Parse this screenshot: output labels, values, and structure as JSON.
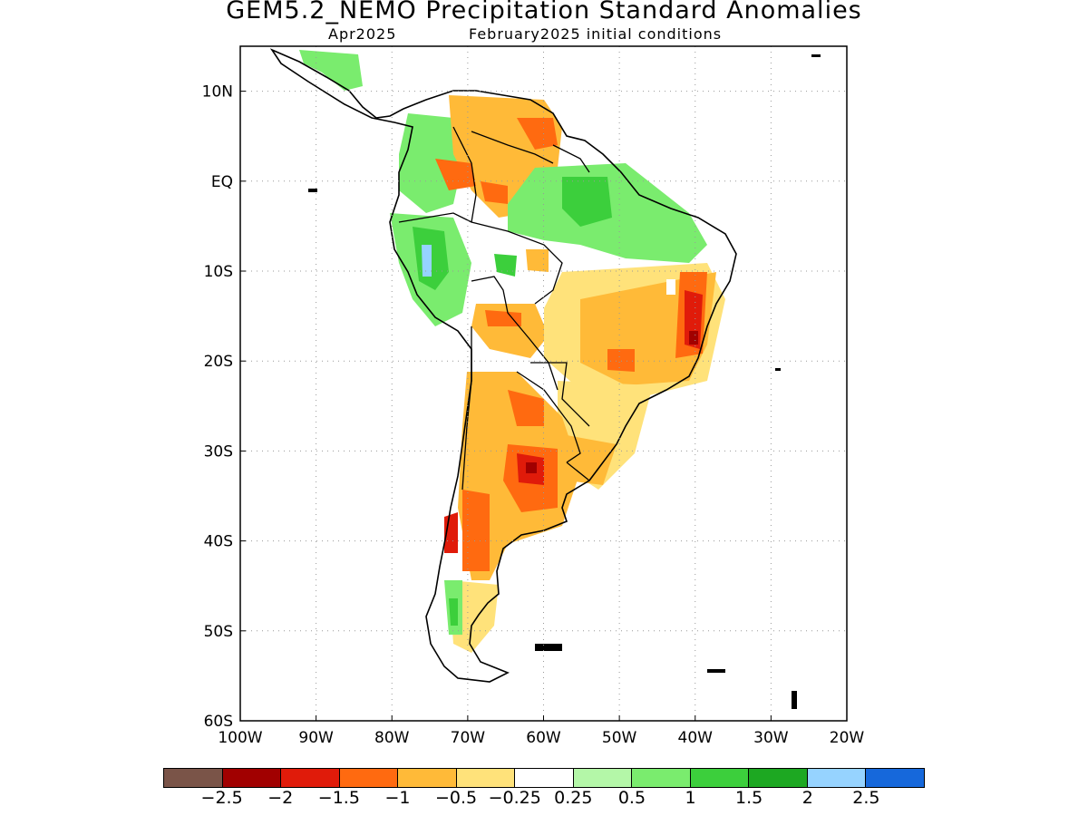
{
  "title": "GEM5.2_NEMO Precipitation Standard Anomalies",
  "subtitle_left": "Apr2025",
  "subtitle_right": "February2025 initial conditions",
  "axes": {
    "lon_range": [
      -100,
      -20
    ],
    "lat_range": [
      -60,
      15
    ],
    "x_tick_labels": [
      "100W",
      "90W",
      "80W",
      "70W",
      "60W",
      "50W",
      "40W",
      "30W",
      "20W"
    ],
    "y_tick_labels": [
      "10N",
      "EQ",
      "10S",
      "20S",
      "30S",
      "40S",
      "50S",
      "60S"
    ],
    "grid": true
  },
  "legend": {
    "colors": [
      "#7a5448",
      "#a10000",
      "#e01b0a",
      "#ff6a10",
      "#ffba38",
      "#ffe27a",
      "#ffffff",
      "#b4f7a8",
      "#7aec6e",
      "#3ccf3c",
      "#1da822",
      "#96d3ff",
      "#1668db"
    ],
    "labels": [
      "−2.5",
      "−2",
      "−1.5",
      "−1",
      "−0.5",
      "−0.25",
      "0.25",
      "0.5",
      "1",
      "1.5",
      "2",
      "2.5"
    ]
  },
  "anomaly_regions": [
    {
      "name": "central-america",
      "level": "1"
    },
    {
      "name": "colombia-venezuela",
      "level": "-0.5"
    },
    {
      "name": "northern-amazon",
      "level": "1"
    },
    {
      "name": "peru-andes",
      "level": "1.5"
    },
    {
      "name": "bolivia",
      "level": "-1"
    },
    {
      "name": "northeast-brazil",
      "level": "-1.5"
    },
    {
      "name": "southern-brazil",
      "level": "-0.5"
    },
    {
      "name": "argentina",
      "level": "-1.5"
    },
    {
      "name": "chile-central",
      "level": "-2"
    },
    {
      "name": "patagonia",
      "level": "-0.5"
    }
  ]
}
